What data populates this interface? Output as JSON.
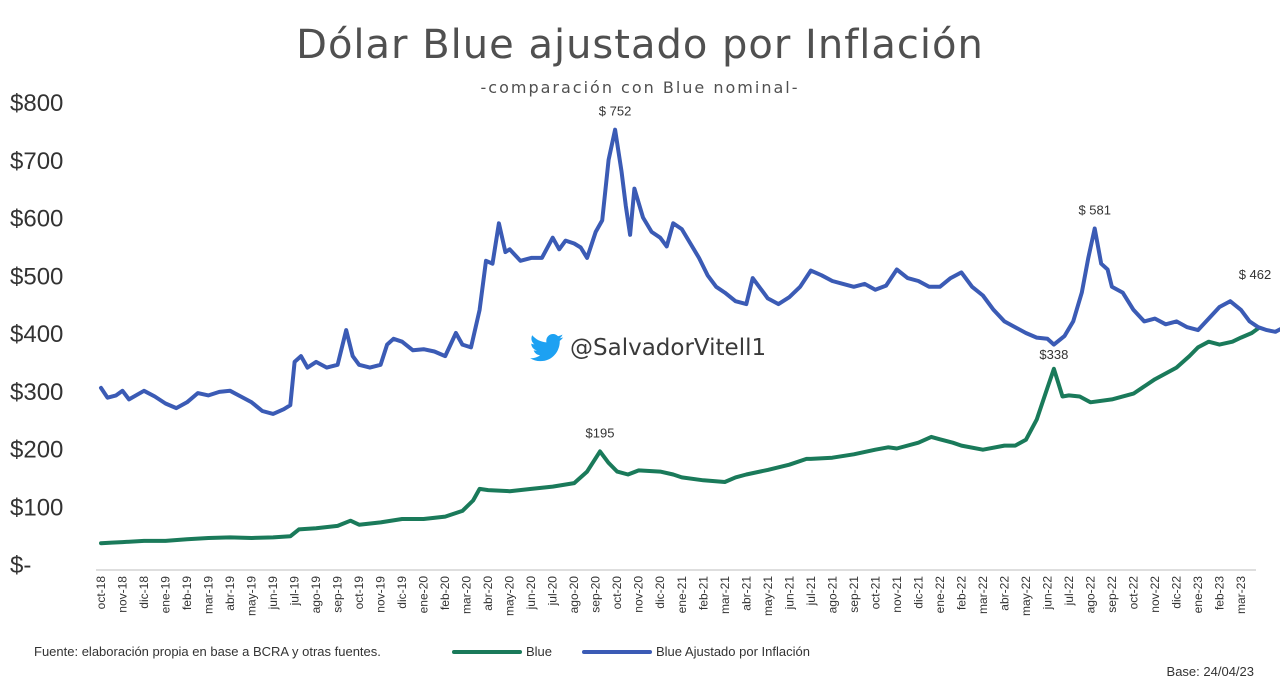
{
  "chart_data": {
    "type": "line",
    "title": "Dólar Blue ajustado por Inflación",
    "subtitle": "-comparación  con Blue nominal-",
    "xlabel": "",
    "ylabel": "",
    "ylim": [
      0,
      800
    ],
    "y_ticks": [
      "$-",
      "$100",
      "$200",
      "$300",
      "$400",
      "$500",
      "$600",
      "$700",
      "$800"
    ],
    "grid": false,
    "legend_placement": "bottom",
    "categories": [
      "oct-18",
      "nov-18",
      "dic-18",
      "ene-19",
      "feb-19",
      "mar-19",
      "abr-19",
      "may-19",
      "jun-19",
      "jul-19",
      "ago-19",
      "sep-19",
      "oct-19",
      "nov-19",
      "dic-19",
      "ene-20",
      "feb-20",
      "mar-20",
      "abr-20",
      "may-20",
      "jun-20",
      "jul-20",
      "ago-20",
      "sep-20",
      "oct-20",
      "nov-20",
      "dic-20",
      "ene-21",
      "feb-21",
      "mar-21",
      "abr-21",
      "may-21",
      "jun-21",
      "jul-21",
      "ago-21",
      "sep-21",
      "oct-21",
      "nov-21",
      "dic-21",
      "ene-22",
      "feb-22",
      "mar-22",
      "abr-22",
      "may-22",
      "jun-22",
      "jul-22",
      "ago-22",
      "sep-22",
      "oct-22",
      "nov-22",
      "dic-22",
      "ene-23",
      "feb-23",
      "mar-23"
    ],
    "series": [
      {
        "name": "Blue",
        "color": "#1a7a5a",
        "points": [
          [
            0,
            36
          ],
          [
            0.5,
            37
          ],
          [
            1,
            38
          ],
          [
            2,
            40
          ],
          [
            3,
            40
          ],
          [
            4,
            43
          ],
          [
            5,
            45
          ],
          [
            6,
            46
          ],
          [
            7,
            45
          ],
          [
            8,
            46
          ],
          [
            8.8,
            48
          ],
          [
            9.2,
            60
          ],
          [
            10,
            62
          ],
          [
            11,
            66
          ],
          [
            11.6,
            75
          ],
          [
            12,
            68
          ],
          [
            13,
            72
          ],
          [
            14,
            78
          ],
          [
            15,
            78
          ],
          [
            16,
            82
          ],
          [
            16.8,
            92
          ],
          [
            17.3,
            110
          ],
          [
            17.6,
            130
          ],
          [
            18,
            128
          ],
          [
            19,
            126
          ],
          [
            20,
            130
          ],
          [
            21,
            134
          ],
          [
            22,
            140
          ],
          [
            22.6,
            160
          ],
          [
            23.2,
            195
          ],
          [
            23.6,
            175
          ],
          [
            24,
            160
          ],
          [
            24.5,
            155
          ],
          [
            25,
            162
          ],
          [
            26,
            160
          ],
          [
            26.6,
            155
          ],
          [
            27,
            150
          ],
          [
            28,
            145
          ],
          [
            29,
            142
          ],
          [
            29.5,
            150
          ],
          [
            30,
            155
          ],
          [
            31,
            163
          ],
          [
            32,
            172
          ],
          [
            32.8,
            182
          ],
          [
            33,
            182
          ],
          [
            34,
            184
          ],
          [
            35,
            190
          ],
          [
            36,
            198
          ],
          [
            36.6,
            202
          ],
          [
            37,
            200
          ],
          [
            38,
            210
          ],
          [
            38.6,
            220
          ],
          [
            39,
            216
          ],
          [
            39.6,
            210
          ],
          [
            40,
            205
          ],
          [
            41,
            198
          ],
          [
            42,
            205
          ],
          [
            42.5,
            205
          ],
          [
            43,
            215
          ],
          [
            43.5,
            250
          ],
          [
            44,
            305
          ],
          [
            44.3,
            338
          ],
          [
            44.7,
            290
          ],
          [
            45,
            292
          ],
          [
            45.5,
            290
          ],
          [
            46,
            280
          ],
          [
            47,
            285
          ],
          [
            48,
            295
          ],
          [
            49,
            320
          ],
          [
            50,
            340
          ],
          [
            50.6,
            360
          ],
          [
            51,
            375
          ],
          [
            51.5,
            385
          ],
          [
            52,
            380
          ],
          [
            52.6,
            385
          ],
          [
            53,
            392
          ],
          [
            53.5,
            400
          ],
          [
            53.8,
            408
          ]
        ]
      },
      {
        "name": "Blue Ajustado por Inflación",
        "color": "#3b5bb5",
        "points": [
          [
            0,
            305
          ],
          [
            0.3,
            288
          ],
          [
            0.7,
            292
          ],
          [
            1,
            300
          ],
          [
            1.3,
            285
          ],
          [
            2,
            300
          ],
          [
            2.5,
            290
          ],
          [
            3,
            278
          ],
          [
            3.5,
            270
          ],
          [
            4,
            280
          ],
          [
            4.5,
            296
          ],
          [
            5,
            292
          ],
          [
            5.5,
            298
          ],
          [
            6,
            300
          ],
          [
            6.5,
            290
          ],
          [
            7,
            280
          ],
          [
            7.5,
            265
          ],
          [
            8,
            260
          ],
          [
            8.5,
            268
          ],
          [
            8.8,
            275
          ],
          [
            9,
            350
          ],
          [
            9.3,
            360
          ],
          [
            9.6,
            340
          ],
          [
            10,
            350
          ],
          [
            10.5,
            340
          ],
          [
            11,
            345
          ],
          [
            11.4,
            405
          ],
          [
            11.7,
            360
          ],
          [
            12,
            345
          ],
          [
            12.5,
            340
          ],
          [
            13,
            345
          ],
          [
            13.3,
            380
          ],
          [
            13.6,
            390
          ],
          [
            14,
            385
          ],
          [
            14.5,
            370
          ],
          [
            15,
            372
          ],
          [
            15.5,
            368
          ],
          [
            16,
            360
          ],
          [
            16.5,
            400
          ],
          [
            16.8,
            380
          ],
          [
            17.2,
            375
          ],
          [
            17.6,
            440
          ],
          [
            17.9,
            525
          ],
          [
            18.2,
            520
          ],
          [
            18.5,
            590
          ],
          [
            18.8,
            540
          ],
          [
            19,
            545
          ],
          [
            19.5,
            525
          ],
          [
            20,
            530
          ],
          [
            20.5,
            530
          ],
          [
            21,
            565
          ],
          [
            21.3,
            545
          ],
          [
            21.6,
            560
          ],
          [
            22,
            555
          ],
          [
            22.3,
            548
          ],
          [
            22.6,
            530
          ],
          [
            23,
            575
          ],
          [
            23.3,
            595
          ],
          [
            23.6,
            700
          ],
          [
            23.9,
            752
          ],
          [
            24.2,
            680
          ],
          [
            24.4,
            620
          ],
          [
            24.6,
            570
          ],
          [
            24.8,
            650
          ],
          [
            25.2,
            600
          ],
          [
            25.6,
            575
          ],
          [
            26,
            565
          ],
          [
            26.3,
            550
          ],
          [
            26.6,
            590
          ],
          [
            27,
            580
          ],
          [
            27.4,
            555
          ],
          [
            27.8,
            530
          ],
          [
            28.2,
            500
          ],
          [
            28.6,
            480
          ],
          [
            29,
            470
          ],
          [
            29.5,
            455
          ],
          [
            30,
            450
          ],
          [
            30.3,
            495
          ],
          [
            30.8,
            470
          ],
          [
            31,
            460
          ],
          [
            31.5,
            450
          ],
          [
            32,
            462
          ],
          [
            32.5,
            480
          ],
          [
            33,
            508
          ],
          [
            33.5,
            500
          ],
          [
            34,
            490
          ],
          [
            34.5,
            485
          ],
          [
            35,
            480
          ],
          [
            35.5,
            485
          ],
          [
            36,
            475
          ],
          [
            36.5,
            482
          ],
          [
            37,
            510
          ],
          [
            37.5,
            495
          ],
          [
            38,
            490
          ],
          [
            38.5,
            480
          ],
          [
            39,
            480
          ],
          [
            39.5,
            495
          ],
          [
            40,
            505
          ],
          [
            40.5,
            480
          ],
          [
            41,
            465
          ],
          [
            41.5,
            440
          ],
          [
            42,
            420
          ],
          [
            42.5,
            410
          ],
          [
            43,
            400
          ],
          [
            43.5,
            392
          ],
          [
            44,
            390
          ],
          [
            44.3,
            380
          ],
          [
            44.8,
            395
          ],
          [
            45.2,
            420
          ],
          [
            45.6,
            470
          ],
          [
            45.9,
            530
          ],
          [
            46.2,
            581
          ],
          [
            46.5,
            520
          ],
          [
            46.8,
            510
          ],
          [
            47,
            480
          ],
          [
            47.5,
            470
          ],
          [
            48,
            440
          ],
          [
            48.5,
            420
          ],
          [
            49,
            425
          ],
          [
            49.5,
            415
          ],
          [
            50,
            420
          ],
          [
            50.5,
            410
          ],
          [
            51,
            405
          ],
          [
            51.5,
            425
          ],
          [
            52,
            445
          ],
          [
            52.5,
            455
          ],
          [
            53,
            440
          ],
          [
            53.4,
            420
          ],
          [
            53.8,
            410
          ],
          [
            54.2,
            405
          ],
          [
            54.6,
            402
          ],
          [
            55,
            410
          ],
          [
            55.3,
            440
          ],
          [
            55.6,
            462
          ]
        ]
      }
    ],
    "annotations": [
      "$ 752",
      "$ 581",
      "$ 462",
      "$195",
      "$338"
    ]
  },
  "watermark": {
    "icon": "twitter-bird-icon",
    "handle": "@SalvadorVitell1",
    "color": "#1da1f2"
  },
  "footer": {
    "source": "Fuente: elaboración propia en base a BCRA y otras fuentes.",
    "base_date": "Base: 24/04/23"
  }
}
